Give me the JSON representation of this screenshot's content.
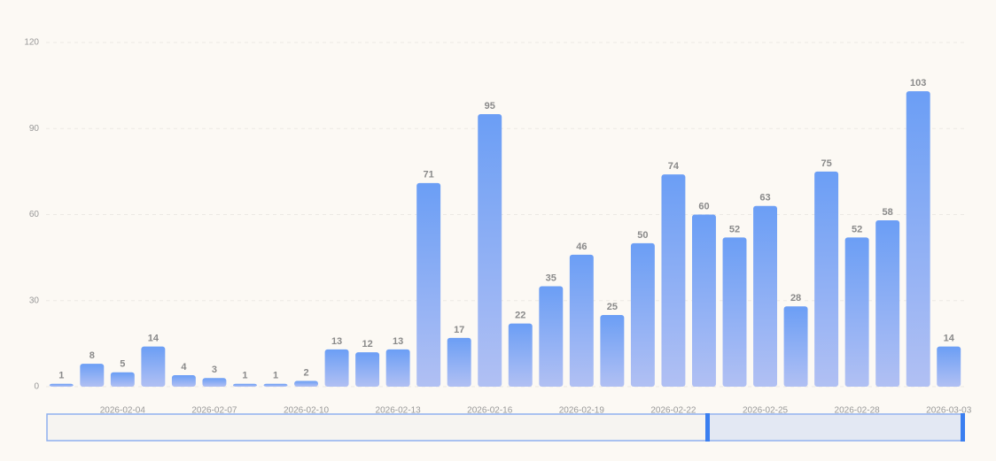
{
  "chart_data": {
    "type": "bar",
    "color": "#6b9ef5",
    "categories": [
      null,
      null,
      "2026-02-04",
      null,
      null,
      "2026-02-07",
      null,
      null,
      "2026-02-10",
      null,
      null,
      "2026-02-13",
      null,
      null,
      "2026-02-16",
      null,
      null,
      "2026-02-19",
      null,
      null,
      "2026-02-22",
      null,
      null,
      "2026-02-25",
      null,
      null,
      "2026-02-28",
      null,
      null,
      "2026-03-03"
    ],
    "values": [
      1,
      8,
      5,
      14,
      4,
      3,
      1,
      1,
      2,
      13,
      12,
      13,
      71,
      17,
      95,
      22,
      35,
      46,
      25,
      50,
      74,
      60,
      52,
      63,
      28,
      75,
      52,
      58,
      103,
      14
    ],
    "ylim": [
      0,
      120
    ],
    "yticks": [
      0,
      30,
      60,
      90,
      120
    ],
    "grid": true
  }
}
